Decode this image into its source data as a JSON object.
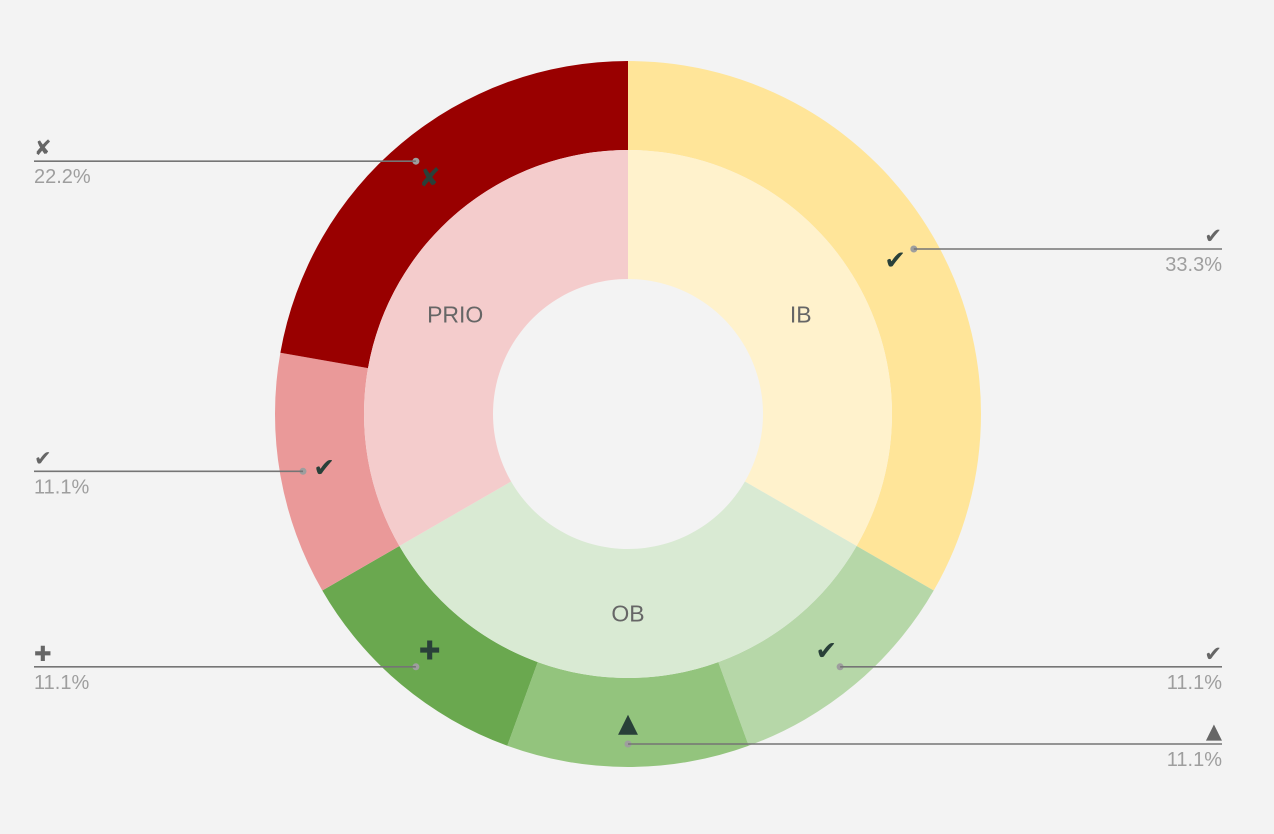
{
  "chart_data": {
    "type": "pie",
    "subtype": "two-level donut (sunburst)",
    "title": "",
    "inner_ring": {
      "categories": [
        "IB",
        "OB",
        "PRIO"
      ],
      "values": [
        33.3,
        33.3,
        33.3
      ],
      "colors": [
        "#fff2cc",
        "#d9ead3",
        "#f4cccc"
      ]
    },
    "outer_ring": {
      "slices": [
        {
          "parent": "IB",
          "symbol": "✔",
          "value": 33.3,
          "label": "33.3%",
          "color": "#ffe599"
        },
        {
          "parent": "OB",
          "symbol": "✔",
          "value": 11.1,
          "label": "11.1%",
          "color": "#b6d7a8"
        },
        {
          "parent": "OB",
          "symbol": "▲",
          "value": 11.1,
          "label": "11.1%",
          "color": "#93c47d"
        },
        {
          "parent": "OB",
          "symbol": "✚",
          "value": 11.1,
          "label": "11.1%",
          "color": "#6aa84f"
        },
        {
          "parent": "PRIO",
          "symbol": "✔",
          "value": 11.1,
          "label": "11.1%",
          "color": "#ea9999"
        },
        {
          "parent": "PRIO",
          "symbol": "✘",
          "value": 22.2,
          "label": "22.2%",
          "color": "#990000"
        }
      ]
    },
    "start": "top",
    "direction": "clockwise",
    "legend": "none",
    "label_color": "#666666",
    "marker_color": "#294039",
    "background": "#f3f3f3"
  }
}
